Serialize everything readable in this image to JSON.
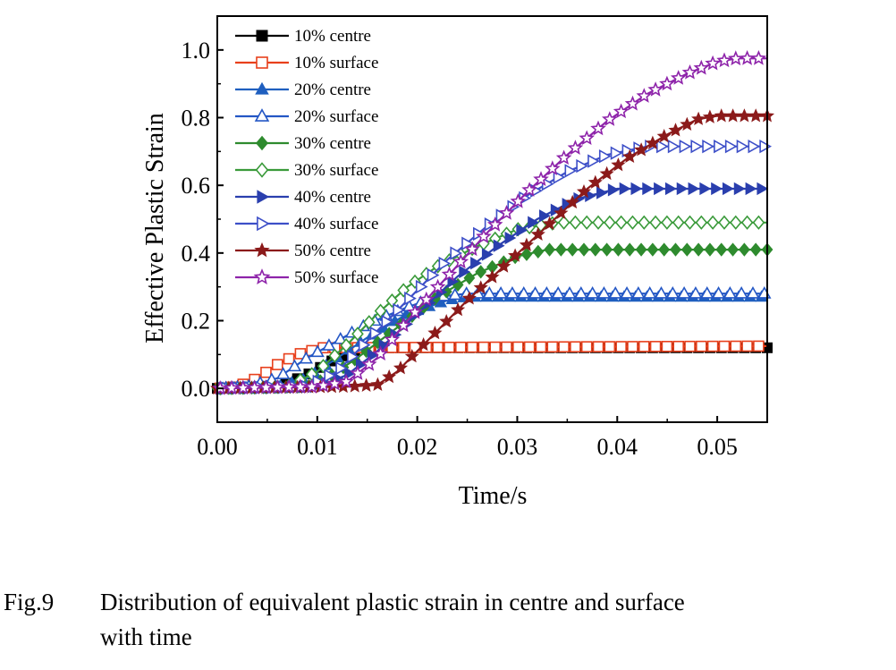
{
  "chart_data": {
    "type": "line",
    "xlabel": "Time/s",
    "ylabel": "Effective Plastic Strain",
    "xlim": [
      0,
      0.055
    ],
    "ylim": [
      -0.1,
      1.1
    ],
    "xticks": [
      "0.00",
      "0.01",
      "0.02",
      "0.03",
      "0.04",
      "0.05"
    ],
    "yticks": [
      "0.0",
      "0.2",
      "0.4",
      "0.6",
      "0.8",
      "1.0"
    ],
    "legend_position": "top-left",
    "series": [
      {
        "name": "10% centre",
        "color": "#000000",
        "marker": "square-filled",
        "points": [
          [
            0,
            0
          ],
          [
            0.006,
            0.005
          ],
          [
            0.009,
            0.04
          ],
          [
            0.012,
            0.09
          ],
          [
            0.015,
            0.12
          ],
          [
            0.055,
            0.12
          ]
        ]
      },
      {
        "name": "10% surface",
        "color": "#e8401c",
        "marker": "square-open",
        "points": [
          [
            0,
            0
          ],
          [
            0.002,
            0.005
          ],
          [
            0.004,
            0.03
          ],
          [
            0.006,
            0.07
          ],
          [
            0.008,
            0.1
          ],
          [
            0.0105,
            0.12
          ],
          [
            0.055,
            0.125
          ]
        ]
      },
      {
        "name": "20% centre",
        "color": "#1f5fbf",
        "marker": "triangle-up-filled",
        "points": [
          [
            0,
            0
          ],
          [
            0.006,
            0.005
          ],
          [
            0.009,
            0.03
          ],
          [
            0.012,
            0.09
          ],
          [
            0.015,
            0.15
          ],
          [
            0.019,
            0.22
          ],
          [
            0.023,
            0.26
          ],
          [
            0.025,
            0.27
          ],
          [
            0.055,
            0.27
          ]
        ]
      },
      {
        "name": "20% surface",
        "color": "#2457c5",
        "marker": "triangle-up-open",
        "points": [
          [
            0,
            0
          ],
          [
            0.003,
            0.005
          ],
          [
            0.006,
            0.03
          ],
          [
            0.009,
            0.09
          ],
          [
            0.012,
            0.14
          ],
          [
            0.015,
            0.19
          ],
          [
            0.019,
            0.24
          ],
          [
            0.022,
            0.27
          ],
          [
            0.025,
            0.28
          ],
          [
            0.055,
            0.28
          ]
        ]
      },
      {
        "name": "30% centre",
        "color": "#2e8b2e",
        "marker": "diamond-filled",
        "points": [
          [
            0,
            0
          ],
          [
            0.009,
            0.005
          ],
          [
            0.011,
            0.03
          ],
          [
            0.014,
            0.09
          ],
          [
            0.018,
            0.18
          ],
          [
            0.022,
            0.27
          ],
          [
            0.026,
            0.34
          ],
          [
            0.03,
            0.39
          ],
          [
            0.033,
            0.41
          ],
          [
            0.055,
            0.41
          ]
        ]
      },
      {
        "name": "30% surface",
        "color": "#3a9a3a",
        "marker": "diamond-open",
        "points": [
          [
            0,
            0
          ],
          [
            0.007,
            0.005
          ],
          [
            0.01,
            0.05
          ],
          [
            0.013,
            0.13
          ],
          [
            0.016,
            0.22
          ],
          [
            0.019,
            0.3
          ],
          [
            0.022,
            0.36
          ],
          [
            0.026,
            0.42
          ],
          [
            0.03,
            0.47
          ],
          [
            0.034,
            0.49
          ],
          [
            0.055,
            0.49
          ]
        ]
      },
      {
        "name": "40% centre",
        "color": "#2a3fae",
        "marker": "triangle-right-filled",
        "points": [
          [
            0,
            0
          ],
          [
            0.01,
            0.005
          ],
          [
            0.013,
            0.04
          ],
          [
            0.016,
            0.11
          ],
          [
            0.02,
            0.22
          ],
          [
            0.024,
            0.33
          ],
          [
            0.028,
            0.42
          ],
          [
            0.032,
            0.5
          ],
          [
            0.036,
            0.56
          ],
          [
            0.04,
            0.59
          ],
          [
            0.055,
            0.59
          ]
        ]
      },
      {
        "name": "40% surface",
        "color": "#3d4fc8",
        "marker": "triangle-right-open",
        "points": [
          [
            0,
            0
          ],
          [
            0.009,
            0.005
          ],
          [
            0.012,
            0.05
          ],
          [
            0.015,
            0.14
          ],
          [
            0.019,
            0.26
          ],
          [
            0.023,
            0.38
          ],
          [
            0.027,
            0.48
          ],
          [
            0.031,
            0.57
          ],
          [
            0.035,
            0.64
          ],
          [
            0.039,
            0.69
          ],
          [
            0.043,
            0.715
          ],
          [
            0.055,
            0.715
          ]
        ]
      },
      {
        "name": "50% centre",
        "color": "#8b1a1a",
        "marker": "star-filled",
        "points": [
          [
            0,
            0
          ],
          [
            0.013,
            0.005
          ],
          [
            0.016,
            0.01
          ],
          [
            0.018,
            0.05
          ],
          [
            0.021,
            0.14
          ],
          [
            0.025,
            0.26
          ],
          [
            0.029,
            0.37
          ],
          [
            0.033,
            0.48
          ],
          [
            0.037,
            0.59
          ],
          [
            0.041,
            0.68
          ],
          [
            0.045,
            0.75
          ],
          [
            0.048,
            0.795
          ],
          [
            0.05,
            0.805
          ],
          [
            0.055,
            0.805
          ]
        ]
      },
      {
        "name": "50% surface",
        "color": "#8e24aa",
        "marker": "star-open",
        "points": [
          [
            0,
            0
          ],
          [
            0.01,
            0.005
          ],
          [
            0.013,
            0.02
          ],
          [
            0.016,
            0.09
          ],
          [
            0.019,
            0.2
          ],
          [
            0.023,
            0.33
          ],
          [
            0.027,
            0.46
          ],
          [
            0.031,
            0.58
          ],
          [
            0.035,
            0.69
          ],
          [
            0.039,
            0.79
          ],
          [
            0.043,
            0.87
          ],
          [
            0.047,
            0.93
          ],
          [
            0.05,
            0.965
          ],
          [
            0.052,
            0.975
          ],
          [
            0.055,
            0.975
          ]
        ]
      }
    ]
  },
  "caption": {
    "number": "Fig.9",
    "text_line1": "Distribution of equivalent plastic strain in centre and surface",
    "text_line2": "with time"
  }
}
